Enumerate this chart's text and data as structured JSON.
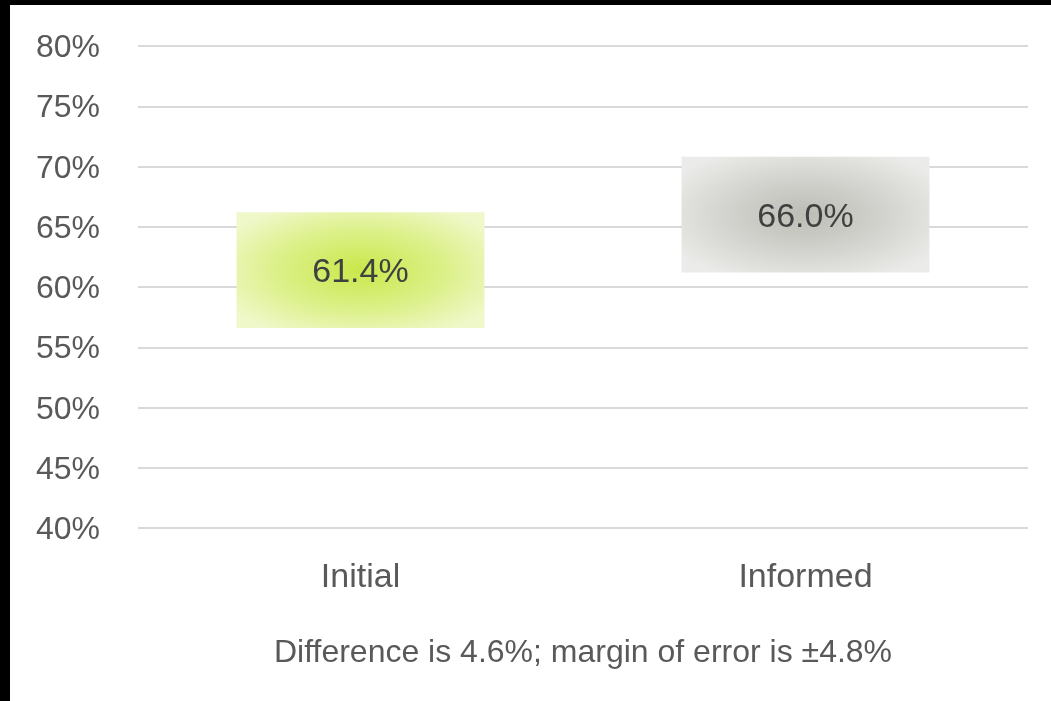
{
  "chart_data": {
    "type": "bar",
    "categories": [
      "Initial",
      "Informed"
    ],
    "base": [
      56.6,
      61.2
    ],
    "values": [
      9.6,
      9.6
    ],
    "colors": [
      "#c9e84a",
      "#bdbdb6"
    ],
    "ylim": [
      40,
      80
    ],
    "yticks": [
      {
        "value": 40,
        "label": "40%"
      },
      {
        "value": 45,
        "label": "45%"
      },
      {
        "value": 50,
        "label": "50%"
      },
      {
        "value": 55,
        "label": "55%"
      },
      {
        "value": 60,
        "label": "60%"
      },
      {
        "value": 65,
        "label": "65%"
      },
      {
        "value": 70,
        "label": "70%"
      },
      {
        "value": 75,
        "label": "75%"
      },
      {
        "value": 80,
        "label": "80%"
      }
    ],
    "grid": "y",
    "annotations": [
      "61.4%",
      "66.0%",
      "Difference is 4.6%; margin of error is ±4.8%"
    ]
  }
}
